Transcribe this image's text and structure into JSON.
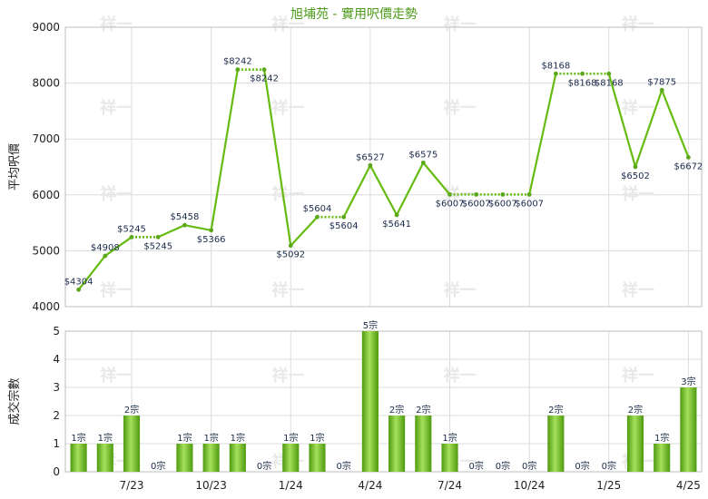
{
  "chart_data": [
    {
      "type": "line",
      "title": "旭埔苑 - 實用呎價走勢",
      "ylabel": "平均呎價",
      "ylim": [
        4000,
        9000
      ],
      "yticks": [
        "4000",
        "5000",
        "6000",
        "7000",
        "8000",
        "9000"
      ],
      "xticks": [
        "7/23",
        "10/23",
        "1/24",
        "4/24",
        "7/24",
        "10/24",
        "1/25",
        "4/25"
      ],
      "values": [
        4304,
        4908,
        5245,
        5245,
        5458,
        5366,
        8242,
        8242,
        5092,
        5604,
        5604,
        6527,
        5641,
        6575,
        6007,
        6007,
        6007,
        6007,
        8168,
        8168,
        8168,
        6502,
        7875,
        6672
      ],
      "labels": [
        "$4304",
        "$4908",
        "$5245",
        "$5245",
        "$5458",
        "$5366",
        "$8242",
        "$8242",
        "$5092",
        "$5604",
        "$5604",
        "$6527",
        "$5641",
        "$6575",
        "$6007",
        "$6007",
        "$6007",
        "$6007",
        "$8168",
        "$8168",
        "$8168",
        "$6502",
        "$7875",
        "$6672"
      ],
      "carried_forward": [
        false,
        false,
        false,
        true,
        false,
        false,
        false,
        true,
        false,
        false,
        true,
        false,
        false,
        false,
        false,
        true,
        true,
        true,
        false,
        true,
        true,
        false,
        false,
        false
      ],
      "color": "#66bb11"
    },
    {
      "type": "bar",
      "ylabel": "成交宗數",
      "ylim": [
        0,
        5
      ],
      "yticks": [
        "0",
        "1",
        "2",
        "3",
        "4",
        "5"
      ],
      "xticks": [
        "7/23",
        "10/23",
        "1/24",
        "4/24",
        "7/24",
        "10/24",
        "1/25",
        "4/25"
      ],
      "values": [
        1,
        1,
        2,
        0,
        1,
        1,
        1,
        0,
        1,
        1,
        0,
        5,
        2,
        2,
        1,
        0,
        0,
        0,
        2,
        0,
        0,
        2,
        1,
        3
      ],
      "labels": [
        "1宗",
        "1宗",
        "2宗",
        "0宗",
        "1宗",
        "1宗",
        "1宗",
        "0宗",
        "1宗",
        "1宗",
        "0宗",
        "5宗",
        "2宗",
        "2宗",
        "1宗",
        "0宗",
        "0宗",
        "0宗",
        "2宗",
        "0宗",
        "0宗",
        "2宗",
        "1宗",
        "3宗"
      ],
      "color": "#66bb11"
    }
  ],
  "watermark": "祥一"
}
